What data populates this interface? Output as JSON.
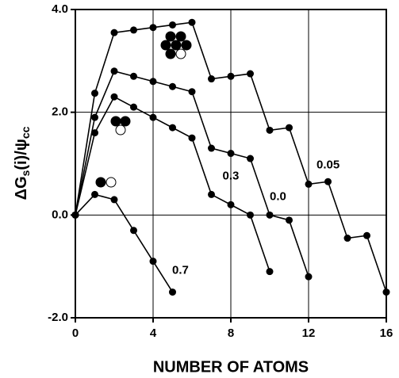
{
  "chart_data": {
    "type": "line",
    "xlabel": "NUMBER OF ATOMS",
    "ylabel": [
      "ΔG",
      "s",
      "(i)/ψ",
      "cc"
    ],
    "xlim": [
      0,
      16
    ],
    "xticks": [
      0,
      4,
      8,
      12,
      16
    ],
    "ylim": [
      -2,
      4
    ],
    "yticks": [
      {
        "value": -2,
        "label": "-2.0"
      },
      {
        "value": 0,
        "label": "0.0"
      },
      {
        "value": 2,
        "label": "2.0"
      },
      {
        "value": 4,
        "label": "4.0"
      }
    ],
    "grid": true,
    "series": [
      {
        "name": "0.05",
        "color": "#000000",
        "x": [
          0,
          1,
          2,
          3,
          4,
          5,
          6,
          7,
          8,
          9,
          10,
          11,
          12,
          13,
          14,
          15,
          16
        ],
        "values": [
          0,
          2.37,
          3.55,
          3.6,
          3.65,
          3.7,
          3.75,
          2.65,
          2.7,
          2.75,
          1.65,
          1.7,
          0.6,
          0.65,
          -0.45,
          -0.4,
          -1.5
        ]
      },
      {
        "name": "0.0",
        "color": "#000000",
        "x": [
          0,
          1,
          2,
          3,
          4,
          5,
          6,
          7,
          8,
          9,
          10,
          11,
          12
        ],
        "values": [
          0,
          1.9,
          2.8,
          2.7,
          2.6,
          2.5,
          2.4,
          1.3,
          1.2,
          1.1,
          0.0,
          -0.1,
          -1.2
        ]
      },
      {
        "name": "0.3",
        "color": "#000000",
        "x": [
          0,
          1,
          2,
          3,
          4,
          5,
          6,
          7,
          8,
          9,
          10
        ],
        "values": [
          0,
          1.6,
          2.3,
          2.1,
          1.9,
          1.7,
          1.5,
          0.4,
          0.2,
          0.0,
          -1.1
        ]
      },
      {
        "name": "0.7",
        "color": "#000000",
        "x": [
          0,
          1,
          2,
          3,
          4,
          5
        ],
        "values": [
          0,
          0.4,
          0.3,
          -0.3,
          -0.9,
          -1.5
        ]
      }
    ]
  }
}
